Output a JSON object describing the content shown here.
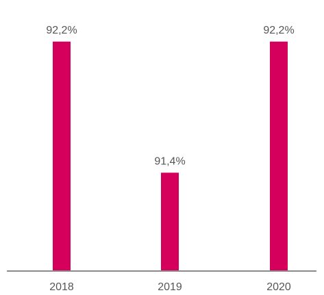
{
  "chart_data": {
    "type": "bar",
    "categories": [
      "2018",
      "2019",
      "2020"
    ],
    "values": [
      92.2,
      91.4,
      92.2
    ],
    "value_labels": [
      "92,2%",
      "91,4%",
      "92,2%"
    ],
    "title": "",
    "xlabel": "",
    "ylabel": "",
    "ylim": [
      90.8,
      92.27
    ],
    "grid": false,
    "legend": "none",
    "colors": {
      "bar": "#d5005b",
      "axis": "#8a8a8a",
      "text": "#555555"
    }
  }
}
